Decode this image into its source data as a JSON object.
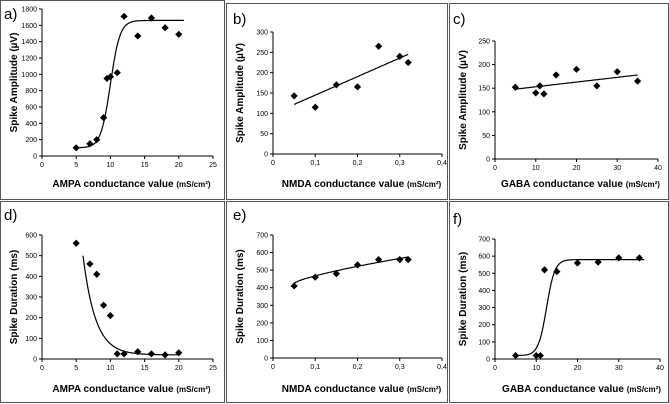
{
  "chart_data": [
    {
      "type": "scatter",
      "panel_label": "a)",
      "xlabel": "AMPA conductance value",
      "xunit": "(mS/cm²)",
      "ylabel": "Spike Amplitude (µV)",
      "xlim": [
        0,
        25
      ],
      "ylim": [
        0,
        1800
      ],
      "xticks": [
        "0",
        "5",
        "10",
        "15",
        "20",
        "25"
      ],
      "yticks": [
        "0",
        "200",
        "400",
        "600",
        "800",
        "1000",
        "1200",
        "1400",
        "1600",
        "1800"
      ],
      "x": [
        5,
        7,
        8,
        9,
        9.5,
        10,
        11,
        12,
        14,
        16,
        18,
        20
      ],
      "y": [
        100,
        150,
        200,
        470,
        950,
        970,
        1020,
        1710,
        1470,
        1690,
        1570,
        1490
      ],
      "fit": {
        "kind": "sigmoid",
        "bottom": 100,
        "top": 1660,
        "mid": 10,
        "slope": 0.7
      }
    },
    {
      "type": "scatter",
      "panel_label": "b)",
      "xlabel": "NMDA conductance value",
      "xunit": "(mS/cm²)",
      "ylabel": "Spike Amplitude (µV)",
      "xlim": [
        0,
        0.4
      ],
      "ylim": [
        0,
        300
      ],
      "xticks": [
        "0",
        "0,1",
        "0,2",
        "0,3",
        "0,4"
      ],
      "yticks": [
        "0",
        "50",
        "100",
        "150",
        "200",
        "250",
        "300"
      ],
      "x": [
        0.05,
        0.1,
        0.15,
        0.2,
        0.25,
        0.3,
        0.32
      ],
      "y": [
        143,
        115,
        170,
        165,
        265,
        240,
        225
      ],
      "fit": {
        "kind": "linear",
        "x0": 0.05,
        "x1": 0.32,
        "y0": 122,
        "y1": 245
      }
    },
    {
      "type": "scatter",
      "panel_label": "c)",
      "xlabel": "GABA conductance value",
      "xunit": "(mS/cm²)",
      "ylabel": "Spike Amplitude (µV)",
      "xlim": [
        0,
        40
      ],
      "ylim": [
        0,
        250
      ],
      "xticks": [
        "0",
        "10",
        "20",
        "30",
        "40"
      ],
      "yticks": [
        "0",
        "50",
        "100",
        "150",
        "200",
        "250"
      ],
      "x": [
        5,
        10,
        11,
        12,
        15,
        20,
        25,
        30,
        35
      ],
      "y": [
        152,
        140,
        155,
        138,
        178,
        190,
        155,
        185,
        165
      ],
      "fit": {
        "kind": "linear",
        "x0": 5,
        "x1": 35,
        "y0": 148,
        "y1": 178
      }
    },
    {
      "type": "scatter",
      "panel_label": "d)",
      "xlabel": "AMPA conductance value",
      "xunit": "(mS/cm²)",
      "ylabel": "Spike Duration (ms)",
      "xlim": [
        0,
        25
      ],
      "ylim": [
        0,
        600
      ],
      "xticks": [
        "0",
        "5",
        "10",
        "15",
        "20",
        "25"
      ],
      "yticks": [
        "0",
        "100",
        "200",
        "300",
        "400",
        "500",
        "600"
      ],
      "x": [
        5,
        7,
        8,
        9,
        10,
        11,
        12,
        14,
        16,
        18,
        20
      ],
      "y": [
        560,
        460,
        410,
        260,
        210,
        25,
        25,
        35,
        25,
        20,
        30
      ],
      "fit": {
        "kind": "decay",
        "x0": 6,
        "x1": 20,
        "start": 500,
        "floor": 20,
        "rate": 0.55
      }
    },
    {
      "type": "scatter",
      "panel_label": "e)",
      "xlabel": "NMDA conductance value",
      "xunit": "(mS/cm²)",
      "ylabel": "Spike Duration (ms)",
      "xlim": [
        0,
        0.4
      ],
      "ylim": [
        0,
        700
      ],
      "xticks": [
        "0",
        "0,1",
        "0,2",
        "0,3",
        "0,4"
      ],
      "yticks": [
        "0",
        "100",
        "200",
        "300",
        "400",
        "500",
        "600",
        "700"
      ],
      "x": [
        0.05,
        0.1,
        0.15,
        0.2,
        0.25,
        0.3,
        0.32
      ],
      "y": [
        410,
        460,
        480,
        530,
        560,
        560,
        560
      ],
      "fit": {
        "kind": "power",
        "x0": 0.05,
        "x1": 0.32,
        "y0": 425,
        "y1": 575
      }
    },
    {
      "type": "scatter",
      "panel_label": "f)",
      "xlabel": "GABA conductance value",
      "xunit": "(mS/cm²)",
      "ylabel": "Spike Duration (ms)",
      "xlim": [
        0,
        40
      ],
      "ylim": [
        0,
        700
      ],
      "xticks": [
        "0",
        "10",
        "20",
        "30",
        "40"
      ],
      "yticks": [
        "0",
        "100",
        "200",
        "300",
        "400",
        "500",
        "600",
        "700"
      ],
      "x": [
        5,
        10,
        11,
        12,
        15,
        20,
        25,
        30,
        35
      ],
      "y": [
        20,
        20,
        20,
        520,
        510,
        560,
        565,
        590,
        590
      ],
      "fit": {
        "kind": "sigmoid",
        "bottom": 20,
        "top": 580,
        "mid": 12.5,
        "slope": 1.0
      }
    }
  ]
}
